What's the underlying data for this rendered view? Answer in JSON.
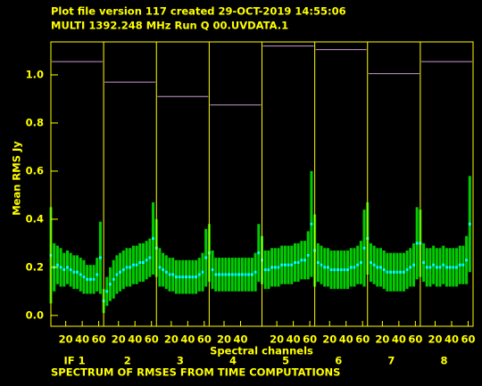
{
  "chart_data": {
    "type": "errorbar",
    "title": "Plot file version 117  created 29-OCT-2019 14:55:06",
    "subtitle": "MULTI 1392.248 MHz  Run Q 00.UVDATA.1",
    "y_label": "Mean RMS Jy",
    "x_label": "Spectral channels",
    "footer": "SPECTRUM OF RMSES FROM TIME COMPUTATIONS",
    "ylim": [
      -0.045,
      1.137
    ],
    "yticks": [
      {
        "value": 0,
        "label": "0.0"
      },
      0.2,
      0.4,
      0.6,
      0.8,
      {
        "value": 1,
        "label": "1.0"
      }
    ],
    "xlim": [
      2,
      66
    ],
    "x": [
      2,
      6,
      10,
      14,
      18,
      22,
      26,
      30,
      34,
      38,
      42,
      46,
      50,
      54,
      58,
      62
    ],
    "mean_color": "#00ffff",
    "error_color": "#00cc00",
    "max_color": "#c89ad0",
    "frame_color": "#ffff00",
    "panels": [
      {
        "label": "IF 1",
        "xticks": [
          20,
          40,
          60
        ],
        "max": 1.055,
        "values": [
          0.25,
          0.2,
          0.21,
          0.2,
          0.19,
          0.2,
          0.19,
          0.18,
          0.18,
          0.17,
          0.16,
          0.15,
          0.15,
          0.15,
          0.17,
          0.24
        ],
        "errors": [
          0.2,
          0.1,
          0.08,
          0.08,
          0.07,
          0.07,
          0.07,
          0.07,
          0.07,
          0.07,
          0.07,
          0.06,
          0.06,
          0.06,
          0.07,
          0.15
        ]
      },
      {
        "label": "2",
        "xticks": [
          20,
          40,
          60
        ],
        "max": 0.97,
        "values": [
          0.06,
          0.1,
          0.13,
          0.15,
          0.17,
          0.18,
          0.19,
          0.2,
          0.2,
          0.21,
          0.21,
          0.22,
          0.22,
          0.23,
          0.24,
          0.32
        ],
        "errors": [
          0.05,
          0.06,
          0.07,
          0.08,
          0.08,
          0.08,
          0.08,
          0.08,
          0.08,
          0.08,
          0.08,
          0.08,
          0.08,
          0.08,
          0.08,
          0.15
        ]
      },
      {
        "label": "3",
        "xticks": [
          20,
          40,
          60
        ],
        "max": 0.91,
        "values": [
          0.28,
          0.2,
          0.19,
          0.18,
          0.17,
          0.17,
          0.16,
          0.16,
          0.16,
          0.16,
          0.16,
          0.16,
          0.16,
          0.17,
          0.18,
          0.24
        ],
        "errors": [
          0.12,
          0.08,
          0.07,
          0.07,
          0.07,
          0.07,
          0.07,
          0.07,
          0.07,
          0.07,
          0.07,
          0.07,
          0.07,
          0.07,
          0.08,
          0.12
        ]
      },
      {
        "label": "4",
        "xticks": [
          20,
          40
        ],
        "max": 0.875,
        "values": [
          0.26,
          0.19,
          0.17,
          0.17,
          0.17,
          0.17,
          0.17,
          0.17,
          0.17,
          0.17,
          0.17,
          0.17,
          0.17,
          0.17,
          0.18,
          0.26
        ],
        "errors": [
          0.12,
          0.08,
          0.07,
          0.07,
          0.07,
          0.07,
          0.07,
          0.07,
          0.07,
          0.07,
          0.07,
          0.07,
          0.07,
          0.07,
          0.08,
          0.12
        ]
      },
      {
        "label": "5",
        "xticks": [
          20,
          40,
          60
        ],
        "max": 1.12,
        "values": [
          0.23,
          0.19,
          0.19,
          0.2,
          0.2,
          0.2,
          0.21,
          0.21,
          0.21,
          0.21,
          0.22,
          0.22,
          0.23,
          0.23,
          0.25,
          0.38
        ],
        "errors": [
          0.1,
          0.08,
          0.08,
          0.08,
          0.08,
          0.08,
          0.08,
          0.08,
          0.08,
          0.08,
          0.08,
          0.08,
          0.08,
          0.08,
          0.1,
          0.22
        ]
      },
      {
        "label": "6",
        "xticks": [
          20,
          40,
          60
        ],
        "max": 1.105,
        "values": [
          0.27,
          0.22,
          0.21,
          0.2,
          0.2,
          0.19,
          0.19,
          0.19,
          0.19,
          0.19,
          0.19,
          0.2,
          0.2,
          0.21,
          0.22,
          0.28
        ],
        "errors": [
          0.15,
          0.08,
          0.08,
          0.08,
          0.08,
          0.08,
          0.08,
          0.08,
          0.08,
          0.08,
          0.08,
          0.08,
          0.08,
          0.08,
          0.09,
          0.16
        ]
      },
      {
        "label": "7",
        "xticks": [
          20,
          40,
          60
        ],
        "max": 1.005,
        "values": [
          0.32,
          0.22,
          0.21,
          0.2,
          0.2,
          0.19,
          0.18,
          0.18,
          0.18,
          0.18,
          0.18,
          0.18,
          0.19,
          0.2,
          0.21,
          0.3
        ],
        "errors": [
          0.15,
          0.08,
          0.08,
          0.08,
          0.08,
          0.08,
          0.08,
          0.08,
          0.08,
          0.08,
          0.08,
          0.08,
          0.08,
          0.08,
          0.09,
          0.15
        ]
      },
      {
        "label": "8",
        "xticks": [
          20,
          40,
          60
        ],
        "max": 1.055,
        "values": [
          0.3,
          0.22,
          0.2,
          0.2,
          0.21,
          0.2,
          0.2,
          0.21,
          0.2,
          0.2,
          0.2,
          0.2,
          0.21,
          0.21,
          0.23,
          0.38
        ],
        "errors": [
          0.14,
          0.08,
          0.08,
          0.08,
          0.08,
          0.08,
          0.08,
          0.08,
          0.08,
          0.08,
          0.08,
          0.08,
          0.08,
          0.08,
          0.1,
          0.2
        ]
      }
    ]
  }
}
